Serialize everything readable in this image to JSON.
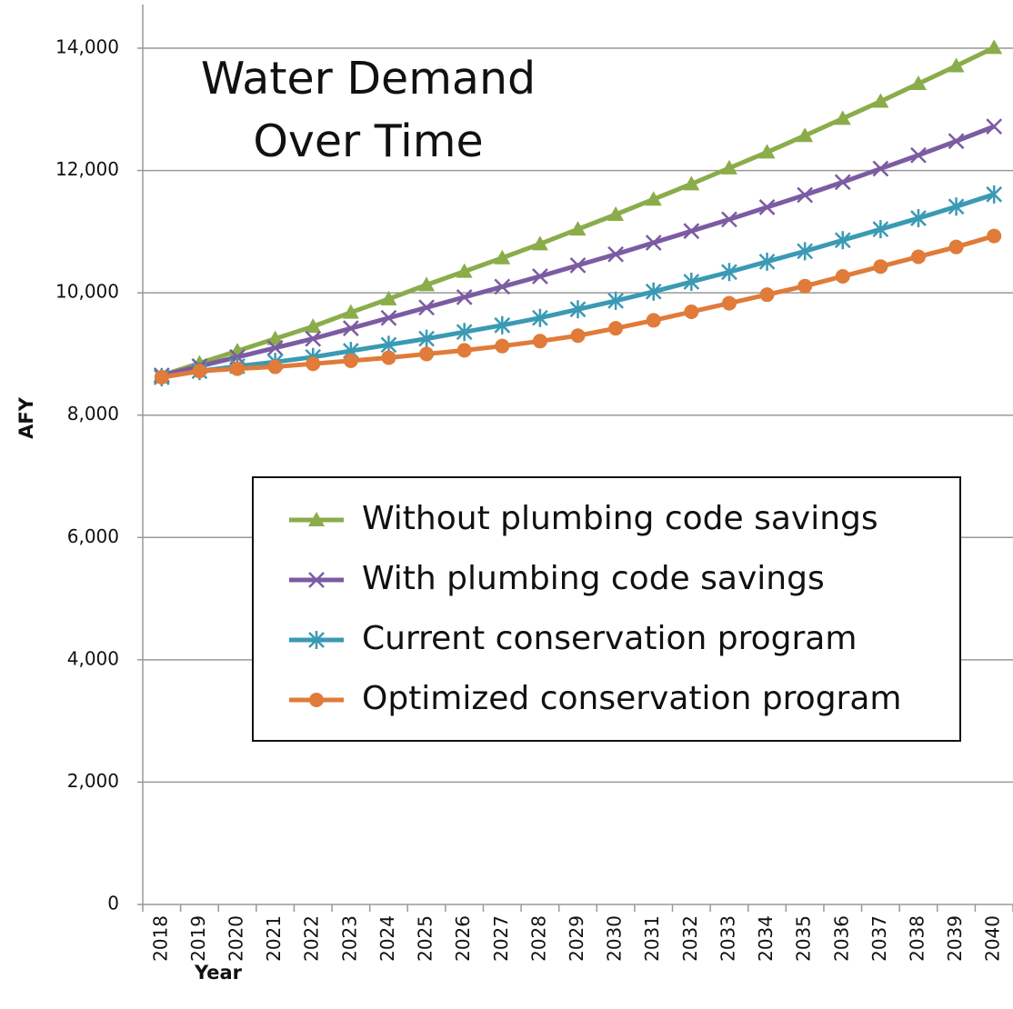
{
  "chart_data": {
    "type": "line",
    "title": "Water Demand Over Time",
    "x_label": "Year",
    "y_label": "AFY",
    "categories": [
      "2018",
      "2019",
      "2020",
      "2021",
      "2022",
      "2023",
      "2024",
      "2025",
      "2026",
      "2027",
      "2028",
      "2029",
      "2030",
      "2031",
      "2032",
      "2033",
      "2034",
      "2035",
      "2036",
      "2037",
      "2038",
      "2039",
      "2040"
    ],
    "ylim": [
      0,
      14000
    ],
    "yticks": [
      0,
      {
        "value": 2000,
        "label": "2,000"
      },
      {
        "value": 4000,
        "label": "4,000"
      },
      {
        "value": 6000,
        "label": "6,000"
      },
      {
        "value": 8000,
        "label": "8,000"
      },
      {
        "value": 10000,
        "label": "10,000"
      },
      {
        "value": 12000,
        "label": "12,000"
      },
      {
        "value": 14000,
        "label": "14,000"
      }
    ],
    "grid": true,
    "legend": "center",
    "series": [
      {
        "name": "Without plumbing code savings",
        "color": "#8aac4a",
        "marker": "triangle",
        "values": [
          8650,
          8850,
          9050,
          9250,
          9450,
          9680,
          9900,
          10130,
          10350,
          10570,
          10800,
          11040,
          11280,
          11530,
          11780,
          12040,
          12300,
          12570,
          12850,
          13130,
          13420,
          13710,
          14010
        ]
      },
      {
        "name": "With plumbing code savings",
        "color": "#7b5ca2",
        "marker": "x",
        "values": [
          8650,
          8800,
          8950,
          9100,
          9250,
          9420,
          9590,
          9760,
          9930,
          10100,
          10270,
          10450,
          10630,
          10820,
          11010,
          11200,
          11400,
          11600,
          11810,
          12030,
          12250,
          12480,
          12720
        ]
      },
      {
        "name": "Current conservation program",
        "color": "#3a9ab4",
        "marker": "asterisk",
        "values": [
          8620,
          8720,
          8800,
          8870,
          8950,
          9050,
          9150,
          9250,
          9360,
          9470,
          9590,
          9730,
          9870,
          10020,
          10180,
          10340,
          10510,
          10680,
          10860,
          11040,
          11220,
          11410,
          11610
        ]
      },
      {
        "name": "Optimized conservation program",
        "color": "#e07b39",
        "marker": "circle",
        "values": [
          8620,
          8720,
          8760,
          8790,
          8840,
          8890,
          8940,
          9000,
          9060,
          9130,
          9210,
          9300,
          9420,
          9550,
          9690,
          9830,
          9970,
          10110,
          10270,
          10430,
          10590,
          10750,
          10930
        ]
      }
    ]
  }
}
